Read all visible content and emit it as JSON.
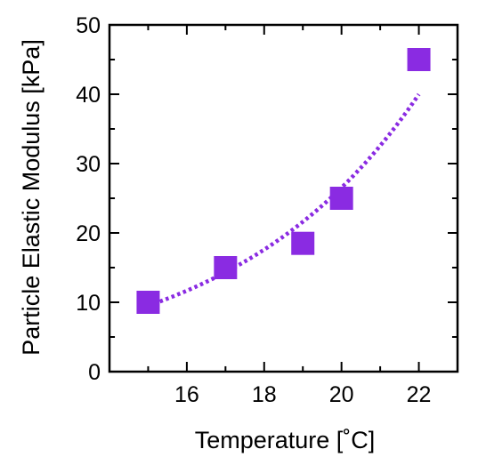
{
  "chart_data": {
    "type": "scatter",
    "title": "",
    "xlabel": "Temperature [˚C]",
    "ylabel": "Particle Elastic Modulus [kPa]",
    "xlim": [
      14,
      23
    ],
    "ylim": [
      0,
      50
    ],
    "xticks": [
      16,
      18,
      20,
      22
    ],
    "yticks": [
      0,
      10,
      20,
      30,
      40,
      50
    ],
    "grid": false,
    "legend": "none",
    "series": [
      {
        "x": [
          15,
          17,
          19,
          20,
          22
        ],
        "y": [
          10,
          15,
          18.5,
          25,
          45
        ],
        "marker": "square",
        "color": "#8a2be2"
      }
    ],
    "fit_curve": {
      "style": "dotted",
      "model": "exponential",
      "color": "#8a2be2"
    }
  }
}
